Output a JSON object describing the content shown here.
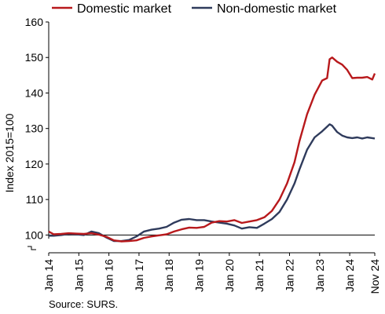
{
  "chart_data": {
    "type": "line",
    "ylabel": "Index 2015=100",
    "xlabel": "",
    "ylim": [
      95,
      160
    ],
    "y_ticks": [
      100,
      110,
      120,
      130,
      140,
      150,
      160
    ],
    "x_ticks": [
      "Jan 14",
      "Jan 15",
      "Jan 16",
      "Jan 17",
      "Jan 18",
      "Jan 19",
      "Jan 20",
      "Jan 21",
      "Jan 22",
      "Jan 23",
      "Jan 24",
      "Nov 24"
    ],
    "x_range": [
      "2014-01",
      "2024-11"
    ],
    "reference_line": 100,
    "axis_break": true,
    "grid": false,
    "legend_position": "top",
    "series": [
      {
        "name": "Domestic market",
        "color": "#b8191c",
        "points": [
          [
            "2014-01",
            101.0
          ],
          [
            "2014-03",
            100.2
          ],
          [
            "2014-06",
            100.3
          ],
          [
            "2014-09",
            100.5
          ],
          [
            "2014-12",
            100.4
          ],
          [
            "2015-03",
            100.3
          ],
          [
            "2015-06",
            100.5
          ],
          [
            "2015-09",
            100.1
          ],
          [
            "2015-12",
            99.5
          ],
          [
            "2016-03",
            98.5
          ],
          [
            "2016-06",
            98.2
          ],
          [
            "2016-09",
            98.3
          ],
          [
            "2016-12",
            98.5
          ],
          [
            "2017-03",
            99.2
          ],
          [
            "2017-06",
            99.6
          ],
          [
            "2017-09",
            99.9
          ],
          [
            "2017-12",
            100.2
          ],
          [
            "2018-03",
            101.0
          ],
          [
            "2018-06",
            101.6
          ],
          [
            "2018-09",
            102.1
          ],
          [
            "2018-12",
            102.0
          ],
          [
            "2019-03",
            102.3
          ],
          [
            "2019-06",
            103.5
          ],
          [
            "2019-09",
            103.9
          ],
          [
            "2019-12",
            103.8
          ],
          [
            "2020-03",
            104.2
          ],
          [
            "2020-06",
            103.4
          ],
          [
            "2020-09",
            103.8
          ],
          [
            "2020-12",
            104.2
          ],
          [
            "2021-03",
            105.0
          ],
          [
            "2021-06",
            106.8
          ],
          [
            "2021-09",
            110.0
          ],
          [
            "2021-12",
            114.5
          ],
          [
            "2022-03",
            120.5
          ],
          [
            "2022-05",
            126.5
          ],
          [
            "2022-08",
            134.0
          ],
          [
            "2022-11",
            139.5
          ],
          [
            "2023-02",
            143.5
          ],
          [
            "2023-04",
            144.2
          ],
          [
            "2023-05",
            149.5
          ],
          [
            "2023-06",
            150.0
          ],
          [
            "2023-08",
            148.8
          ],
          [
            "2023-10",
            148.0
          ],
          [
            "2023-12",
            146.5
          ],
          [
            "2024-02",
            144.2
          ],
          [
            "2024-04",
            144.3
          ],
          [
            "2024-06",
            144.3
          ],
          [
            "2024-08",
            144.5
          ],
          [
            "2024-10",
            143.8
          ],
          [
            "2024-11",
            145.5
          ]
        ]
      },
      {
        "name": "Non-domestic market",
        "color": "#2f3b5c",
        "points": [
          [
            "2014-01",
            99.8
          ],
          [
            "2014-03",
            99.8
          ],
          [
            "2014-06",
            100.0
          ],
          [
            "2014-09",
            100.3
          ],
          [
            "2014-12",
            100.2
          ],
          [
            "2015-03",
            100.0
          ],
          [
            "2015-06",
            101.0
          ],
          [
            "2015-09",
            100.5
          ],
          [
            "2015-12",
            99.3
          ],
          [
            "2016-03",
            98.3
          ],
          [
            "2016-06",
            98.3
          ],
          [
            "2016-09",
            98.6
          ],
          [
            "2016-12",
            99.6
          ],
          [
            "2017-03",
            101.0
          ],
          [
            "2017-06",
            101.5
          ],
          [
            "2017-09",
            101.8
          ],
          [
            "2017-12",
            102.3
          ],
          [
            "2018-03",
            103.5
          ],
          [
            "2018-06",
            104.3
          ],
          [
            "2018-09",
            104.5
          ],
          [
            "2018-12",
            104.2
          ],
          [
            "2019-03",
            104.2
          ],
          [
            "2019-06",
            103.8
          ],
          [
            "2019-09",
            103.5
          ],
          [
            "2019-12",
            103.2
          ],
          [
            "2020-03",
            102.7
          ],
          [
            "2020-06",
            101.8
          ],
          [
            "2020-09",
            102.2
          ],
          [
            "2020-12",
            102.0
          ],
          [
            "2021-03",
            103.2
          ],
          [
            "2021-06",
            104.5
          ],
          [
            "2021-09",
            106.5
          ],
          [
            "2021-12",
            110.0
          ],
          [
            "2022-03",
            114.5
          ],
          [
            "2022-05",
            118.5
          ],
          [
            "2022-08",
            124.0
          ],
          [
            "2022-11",
            127.5
          ],
          [
            "2023-02",
            129.2
          ],
          [
            "2023-04",
            130.5
          ],
          [
            "2023-05",
            131.2
          ],
          [
            "2023-06",
            130.8
          ],
          [
            "2023-08",
            129.0
          ],
          [
            "2023-10",
            128.0
          ],
          [
            "2023-12",
            127.5
          ],
          [
            "2024-02",
            127.3
          ],
          [
            "2024-04",
            127.5
          ],
          [
            "2024-06",
            127.2
          ],
          [
            "2024-08",
            127.5
          ],
          [
            "2024-10",
            127.3
          ],
          [
            "2024-11",
            127.2
          ]
        ]
      }
    ]
  },
  "source": "Source: SURS."
}
